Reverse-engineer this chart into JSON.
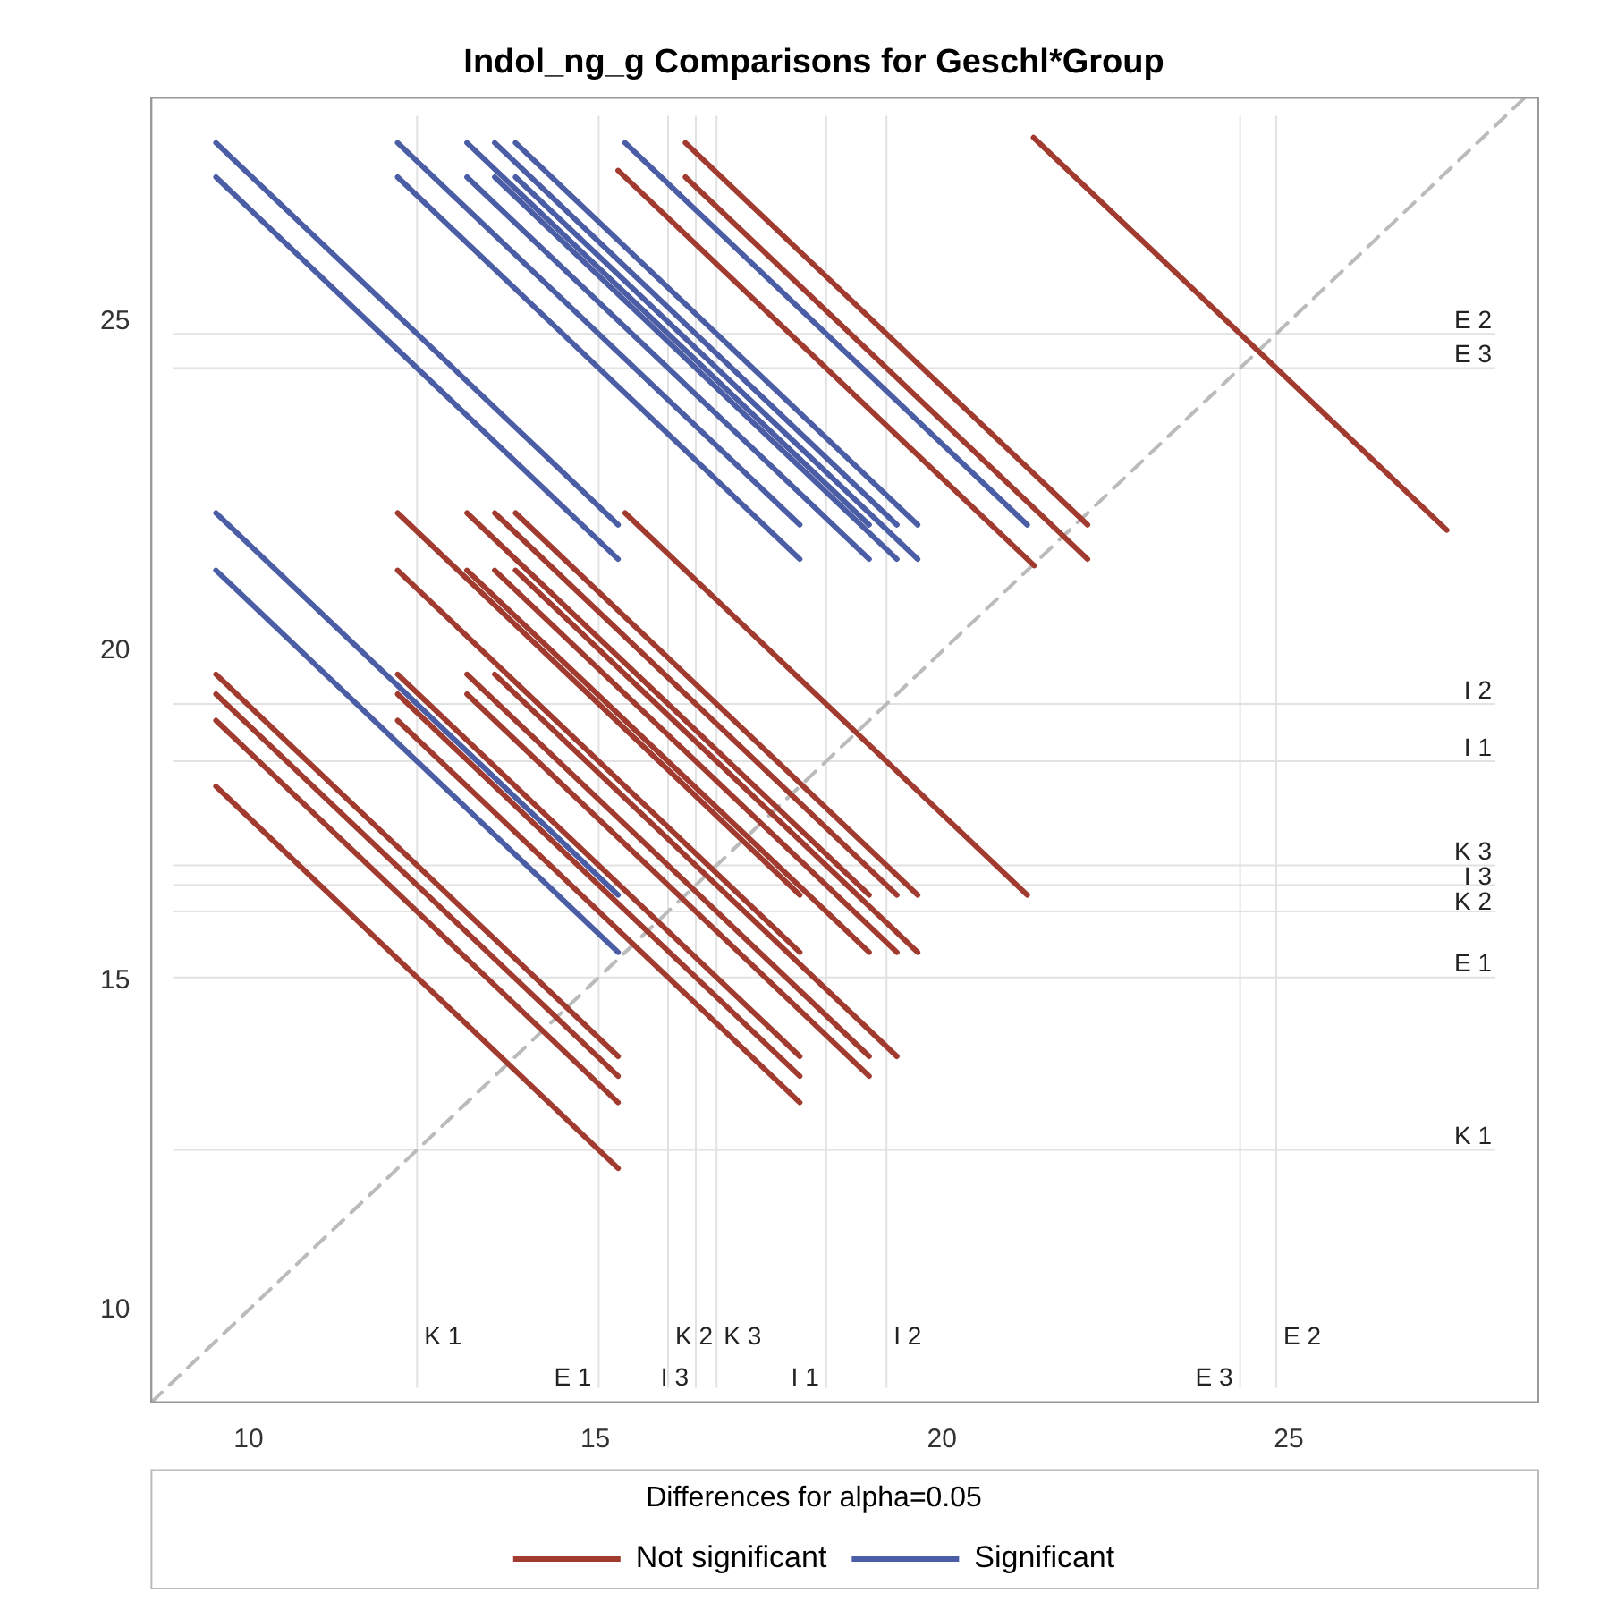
{
  "chart_data": {
    "type": "line",
    "title": "Indol_ng_g Comparisons for Geschl*Group",
    "legend_title": "Differences for alpha=0.05",
    "legend": "bottom",
    "marker": "none",
    "grid": false,
    "xlim": [
      8.6,
      28.6
    ],
    "ylim": [
      8.6,
      28.4
    ],
    "xticks": [
      10,
      15,
      20,
      25
    ],
    "yticks": [
      10,
      15,
      20,
      25
    ],
    "series": [
      {
        "name": "Not significant",
        "color": "#a23b2f",
        "x": [
          9.53,
          15.33
        ],
        "values": [
          17.95,
          12.15
        ]
      },
      {
        "name": "Significant",
        "color": "#4a5da5",
        "x": [
          9.53,
          15.33
        ],
        "values": [
          21.23,
          15.43
        ]
      },
      {
        "color": "#4a5da5",
        "x": [
          9.53,
          15.33
        ],
        "values": [
          22.1,
          16.3
        ]
      },
      {
        "color": "#a23b2f",
        "x": [
          9.53,
          15.33
        ],
        "values": [
          18.95,
          13.15
        ]
      },
      {
        "color": "#a23b2f",
        "x": [
          9.53,
          15.33
        ],
        "values": [
          19.35,
          13.55
        ]
      },
      {
        "color": "#a23b2f",
        "x": [
          9.53,
          15.33
        ],
        "values": [
          19.65,
          13.85
        ]
      },
      {
        "color": "#4a5da5",
        "x": [
          9.53,
          15.33
        ],
        "values": [
          27.2,
          21.4
        ]
      },
      {
        "color": "#4a5da5",
        "x": [
          9.53,
          15.33
        ],
        "values": [
          27.72,
          21.92
        ]
      },
      {
        "color": "#a23b2f",
        "x": [
          12.15,
          17.95
        ],
        "values": [
          18.95,
          13.15
        ]
      },
      {
        "color": "#a23b2f",
        "x": [
          12.15,
          17.95
        ],
        "values": [
          19.35,
          13.55
        ]
      },
      {
        "color": "#a23b2f",
        "x": [
          12.15,
          17.95
        ],
        "values": [
          19.65,
          13.85
        ]
      },
      {
        "color": "#a23b2f",
        "x": [
          12.15,
          17.95
        ],
        "values": [
          21.23,
          15.43
        ]
      },
      {
        "color": "#a23b2f",
        "x": [
          12.15,
          17.95
        ],
        "values": [
          22.1,
          16.3
        ]
      },
      {
        "color": "#4a5da5",
        "x": [
          12.15,
          17.95
        ],
        "values": [
          27.2,
          21.4
        ]
      },
      {
        "color": "#4a5da5",
        "x": [
          12.15,
          17.95
        ],
        "values": [
          27.72,
          21.92
        ]
      },
      {
        "color": "#a23b2f",
        "x": [
          13.15,
          18.95
        ],
        "values": [
          19.35,
          13.55
        ]
      },
      {
        "color": "#a23b2f",
        "x": [
          13.15,
          18.95
        ],
        "values": [
          19.65,
          13.85
        ]
      },
      {
        "color": "#a23b2f",
        "x": [
          13.15,
          18.95
        ],
        "values": [
          21.23,
          15.43
        ]
      },
      {
        "color": "#a23b2f",
        "x": [
          13.15,
          18.95
        ],
        "values": [
          22.1,
          16.3
        ]
      },
      {
        "color": "#4a5da5",
        "x": [
          13.15,
          18.95
        ],
        "values": [
          27.2,
          21.4
        ]
      },
      {
        "color": "#4a5da5",
        "x": [
          13.15,
          18.95
        ],
        "values": [
          27.72,
          21.92
        ]
      },
      {
        "color": "#a23b2f",
        "x": [
          13.55,
          19.35
        ],
        "values": [
          19.65,
          13.85
        ]
      },
      {
        "color": "#a23b2f",
        "x": [
          13.55,
          19.35
        ],
        "values": [
          21.23,
          15.43
        ]
      },
      {
        "color": "#a23b2f",
        "x": [
          13.55,
          19.35
        ],
        "values": [
          22.1,
          16.3
        ]
      },
      {
        "color": "#4a5da5",
        "x": [
          13.55,
          19.35
        ],
        "values": [
          27.2,
          21.4
        ]
      },
      {
        "color": "#4a5da5",
        "x": [
          13.55,
          19.35
        ],
        "values": [
          27.72,
          21.92
        ]
      },
      {
        "color": "#a23b2f",
        "x": [
          13.85,
          19.65
        ],
        "values": [
          21.23,
          15.43
        ]
      },
      {
        "color": "#a23b2f",
        "x": [
          13.85,
          19.65
        ],
        "values": [
          22.1,
          16.3
        ]
      },
      {
        "color": "#4a5da5",
        "x": [
          13.85,
          19.65
        ],
        "values": [
          27.2,
          21.4
        ]
      },
      {
        "color": "#4a5da5",
        "x": [
          13.85,
          19.65
        ],
        "values": [
          27.72,
          21.92
        ]
      },
      {
        "color": "#a23b2f",
        "x": [
          15.43,
          21.23
        ],
        "values": [
          22.1,
          16.3
        ]
      },
      {
        "color": "#a23b2f",
        "x": [
          15.33,
          21.33
        ],
        "values": [
          27.3,
          21.3
        ]
      },
      {
        "color": "#4a5da5",
        "x": [
          15.43,
          21.23
        ],
        "values": [
          27.72,
          21.92
        ]
      },
      {
        "color": "#a23b2f",
        "x": [
          16.3,
          22.1
        ],
        "values": [
          27.2,
          21.4
        ]
      },
      {
        "color": "#a23b2f",
        "x": [
          16.3,
          22.1
        ],
        "values": [
          27.72,
          21.92
        ]
      },
      {
        "color": "#a23b2f",
        "x": [
          21.32,
          27.28
        ],
        "values": [
          27.8,
          21.84
        ]
      },
      {
        "color": "#bbbbbb",
        "x": [
          8.6,
          28.4
        ],
        "values": [
          8.6,
          28.4
        ],
        "line_style": "dashed"
      }
    ],
    "ref_lines": [
      {
        "axis": "x",
        "value": 12.43,
        "label": "K 1",
        "color": "#e2e2e2"
      },
      {
        "axis": "x",
        "value": 15.05,
        "label": "E 1",
        "color": "#e2e2e2"
      },
      {
        "axis": "x",
        "value": 16.05,
        "label": "K 2",
        "color": "#e2e2e2"
      },
      {
        "axis": "x",
        "value": 16.45,
        "label": "I 3",
        "color": "#e2e2e2"
      },
      {
        "axis": "x",
        "value": 16.75,
        "label": "K 3",
        "color": "#e2e2e2"
      },
      {
        "axis": "x",
        "value": 18.33,
        "label": "I 1",
        "color": "#e2e2e2"
      },
      {
        "axis": "x",
        "value": 19.2,
        "label": "I 2",
        "color": "#e2e2e2"
      },
      {
        "axis": "x",
        "value": 24.3,
        "label": "E 3",
        "color": "#e2e2e2"
      },
      {
        "axis": "x",
        "value": 24.82,
        "label": "E 2",
        "color": "#e2e2e2"
      },
      {
        "axis": "y",
        "value": 24.82,
        "label": "E 2",
        "color": "#e2e2e2"
      },
      {
        "axis": "y",
        "value": 24.3,
        "label": "E 3",
        "color": "#e2e2e2"
      },
      {
        "axis": "y",
        "value": 19.2,
        "label": "I 2",
        "color": "#e2e2e2"
      },
      {
        "axis": "y",
        "value": 18.33,
        "label": "I 1",
        "color": "#e2e2e2"
      },
      {
        "axis": "y",
        "value": 16.75,
        "label": "K 3",
        "color": "#e2e2e2"
      },
      {
        "axis": "y",
        "value": 16.45,
        "label": "I 3",
        "color": "#e2e2e2"
      },
      {
        "axis": "y",
        "value": 16.05,
        "label": "K 2",
        "color": "#e2e2e2"
      },
      {
        "axis": "y",
        "value": 15.05,
        "label": "E 1",
        "color": "#e2e2e2"
      },
      {
        "axis": "y",
        "value": 12.43,
        "label": "K 1",
        "color": "#e2e2e2"
      }
    ]
  }
}
